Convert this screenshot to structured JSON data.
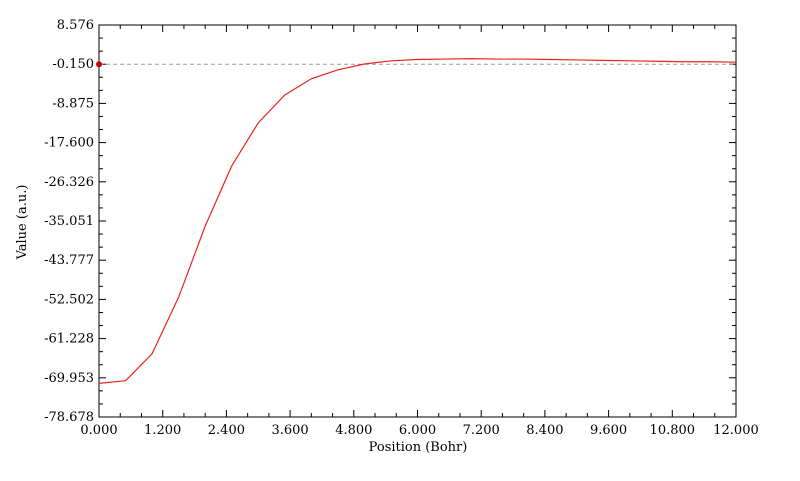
{
  "chart_data": {
    "type": "line",
    "title": "",
    "xlabel": "Position (Bohr)",
    "ylabel": "Value (a.u.)",
    "xlim": [
      0.0,
      12.0
    ],
    "ylim": [
      -78.678,
      8.576
    ],
    "x_ticks": [
      "0.000",
      "1.200",
      "2.400",
      "3.600",
      "4.800",
      "6.000",
      "7.200",
      "8.400",
      "9.600",
      "10.800",
      "12.000"
    ],
    "y_ticks": [
      "8.576",
      "-0.150",
      "-8.875",
      "-17.600",
      "-26.326",
      "-35.051",
      "-43.777",
      "-52.502",
      "-61.228",
      "-69.953",
      "-78.678"
    ],
    "reference_line_y": -0.15,
    "grid": false,
    "series": [
      {
        "color": "#e8231f",
        "x": [
          0.0,
          0.5,
          1.0,
          1.5,
          2.0,
          2.5,
          3.0,
          3.5,
          4.0,
          4.5,
          5.0,
          5.5,
          6.0,
          6.5,
          7.0,
          7.5,
          8.0,
          8.5,
          9.0,
          9.5,
          10.0,
          10.5,
          11.0,
          11.5,
          12.0
        ],
        "y": [
          -71.2,
          -70.6,
          -64.6,
          -52.0,
          -36.2,
          -22.8,
          -13.2,
          -7.0,
          -3.4,
          -1.4,
          -0.1,
          0.6,
          0.9,
          1.0,
          1.1,
          1.0,
          1.0,
          0.9,
          0.8,
          0.7,
          0.6,
          0.5,
          0.4,
          0.4,
          0.3
        ]
      }
    ],
    "marker": {
      "x": 0.0,
      "y": -0.15,
      "color": "#cc0000"
    }
  }
}
